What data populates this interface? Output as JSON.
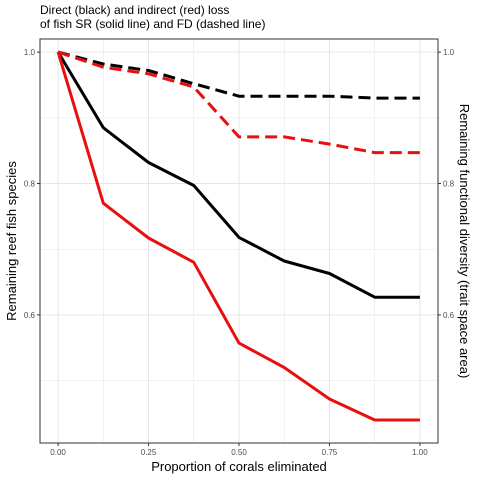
{
  "chart_data": {
    "type": "line",
    "title_lines": [
      "Direct (black) and indirect (red) loss",
      "of fish SR (solid line) and FD (dashed line)"
    ],
    "xlabel": "Proportion of corals eliminated",
    "ylabel_left": "Remaining reef fish species",
    "ylabel_right": "Remaining functional diversity (trait space area)",
    "xlim": [
      -0.05,
      1.05
    ],
    "ylim": [
      0.405,
      1.02
    ],
    "x_ticks": [
      0,
      0.25,
      0.5,
      0.75,
      1
    ],
    "x_tick_labels": [
      "0.00",
      "0.25",
      "0.50",
      "0.75",
      "1.00"
    ],
    "y_left_ticks": [
      0.6,
      0.8,
      1.0
    ],
    "y_left_tick_labels": [
      "0.6",
      "0.8",
      "1.0"
    ],
    "y_right_ticks": [
      0.6,
      0.8,
      1.0
    ],
    "y_right_tick_labels": [
      "0.6",
      "0.8",
      "1.0"
    ],
    "grid": true,
    "colors": {
      "direct": "#000000",
      "indirect": "#e8100f",
      "grid": "#e6e6e6",
      "panel_border": "#333333"
    },
    "x": [
      0,
      0.125,
      0.25,
      0.375,
      0.5,
      0.625,
      0.75,
      0.875,
      1.0
    ],
    "series": [
      {
        "values": [
          1.0,
          0.885,
          0.832,
          0.797,
          0.718,
          0.682,
          0.663,
          0.627,
          0.627
        ],
        "color": "#000000",
        "dash": "solid"
      },
      {
        "values": [
          1.0,
          0.77,
          0.717,
          0.68,
          0.557,
          0.52,
          0.472,
          0.44,
          0.44
        ],
        "color": "#e8100f",
        "dash": "solid"
      },
      {
        "values": [
          1.0,
          0.982,
          0.972,
          0.952,
          0.933,
          0.933,
          0.933,
          0.93,
          0.93
        ],
        "color": "#000000",
        "dash": "dashed"
      },
      {
        "values": [
          1.0,
          0.977,
          0.967,
          0.947,
          0.871,
          0.871,
          0.86,
          0.847,
          0.847
        ],
        "color": "#e8100f",
        "dash": "dashed"
      }
    ]
  }
}
